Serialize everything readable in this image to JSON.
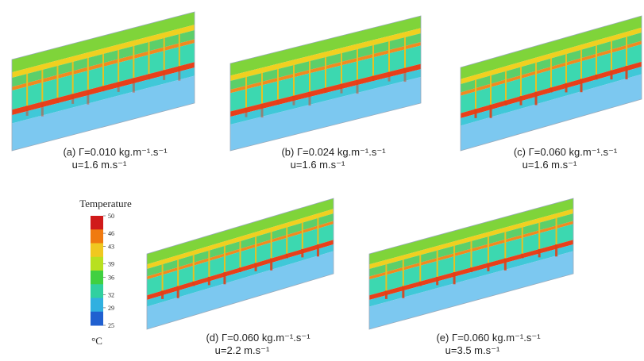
{
  "panels": [
    {
      "caption": "(a) Γ=0.010 kg.m⁻¹.s⁻¹",
      "velocity": "u=1.6 m.s⁻¹"
    },
    {
      "caption": "(b) Γ=0.024 kg.m⁻¹.s⁻¹",
      "velocity": "u=1.6 m.s⁻¹"
    },
    {
      "caption": "(c) Γ=0.060 kg.m⁻¹.s⁻¹",
      "velocity": "u=1.6 m.s⁻¹"
    },
    {
      "caption": "(d) Γ=0.060 kg.m⁻¹.s⁻¹",
      "velocity": "u=2.2 m.s⁻¹"
    },
    {
      "caption": "(e) Γ=0.060 kg.m⁻¹.s⁻¹",
      "velocity": "u=3.5 m.s⁻¹"
    }
  ],
  "colorbar": {
    "title": "Temperature",
    "ticks": [
      50,
      46,
      43,
      39,
      36,
      32,
      29,
      25
    ],
    "lim": [
      25,
      50
    ],
    "unit": "°C"
  }
}
